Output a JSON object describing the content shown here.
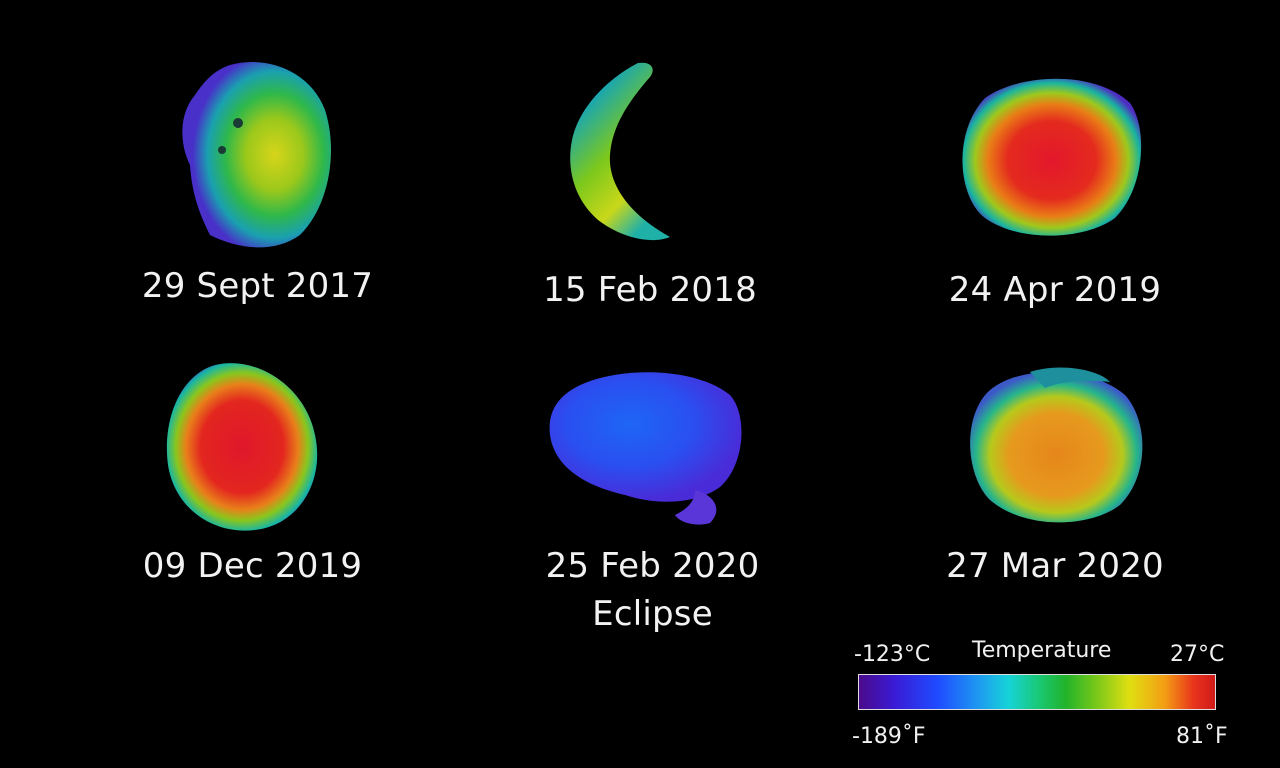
{
  "panels": [
    {
      "date": "29 Sept 2017",
      "note": ""
    },
    {
      "date": "15 Feb 2018",
      "note": ""
    },
    {
      "date": "24 Apr 2019",
      "note": ""
    },
    {
      "date": "09 Dec 2019",
      "note": ""
    },
    {
      "date": "25 Feb 2020",
      "note": "Eclipse"
    },
    {
      "date": "27 Mar 2020",
      "note": ""
    }
  ],
  "legend": {
    "title": "Temperature",
    "min_c": "-123°C",
    "max_c": "27°C",
    "min_f": "-189˚F",
    "max_f": "81˚F"
  },
  "colors": {
    "background": "#000000",
    "cold": "#4b0a8a",
    "hot": "#d01a1a"
  }
}
